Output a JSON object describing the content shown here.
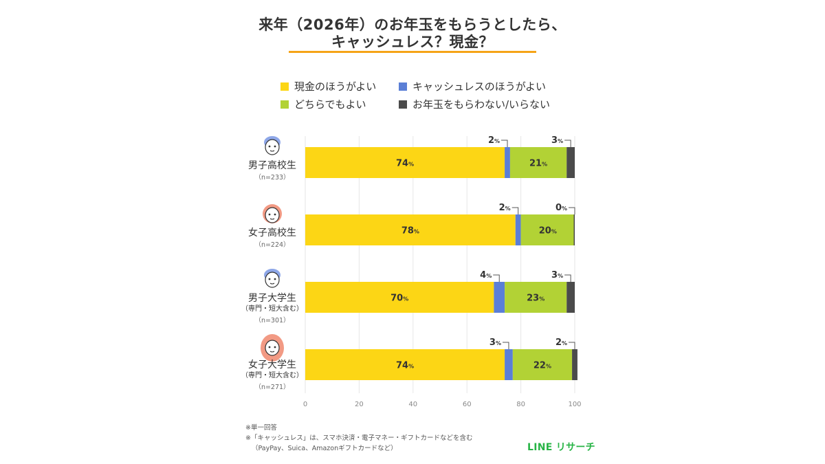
{
  "title": {
    "line1": "来年（2026年）のお年玉をもらうとしたら、",
    "line2": "キャッシュレス？現金？"
  },
  "legend": [
    {
      "label": "現金のほうがよい",
      "color": "#fcd615"
    },
    {
      "label": "キャッシュレスのほうがよい",
      "color": "#5b7fd6"
    },
    {
      "label": "どちらでもよい",
      "color": "#b2d235"
    },
    {
      "label": "お年玉をもらわない/いらない",
      "color": "#4b4b4b"
    }
  ],
  "chart_data": {
    "type": "bar",
    "orientation": "horizontal",
    "stacked": true,
    "percent_suffix": "%",
    "xlim": [
      0,
      100
    ],
    "xticks": [
      "0",
      "20",
      "40",
      "60",
      "80",
      "100"
    ],
    "grid": true,
    "series_names": [
      "現金のほうがよい",
      "キャッシュレスのほうがよい",
      "どちらでもよい",
      "お年玉をもらわない/いらない"
    ],
    "series_colors": [
      "#fcd615",
      "#5b7fd6",
      "#b2d235",
      "#4b4b4b"
    ],
    "categories": [
      {
        "name": "男子高校生",
        "sub": "",
        "n": "（n=233）",
        "icon": "boy-icon",
        "values": [
          74,
          2,
          21,
          3
        ]
      },
      {
        "name": "女子高校生",
        "sub": "",
        "n": "（n=224）",
        "icon": "girl-icon",
        "values": [
          78,
          2,
          20,
          0
        ]
      },
      {
        "name": "男子大学生",
        "sub": "（専門・短大含む）",
        "n": "（n=301）",
        "icon": "young-man-icon",
        "values": [
          70,
          4,
          23,
          3
        ]
      },
      {
        "name": "女子大学生",
        "sub": "（専門・短大含む）",
        "n": "（n=271）",
        "icon": "young-woman-icon",
        "values": [
          74,
          3,
          22,
          2
        ]
      }
    ]
  },
  "notes": [
    "※単一回答",
    "※「キャッシュレス」は、スマホ決済・電子マネー・ギフトカードなどを含む",
    "（PayPay、Suica、Amazonギフトカードなど）"
  ],
  "brand": "LINE リサーチ"
}
